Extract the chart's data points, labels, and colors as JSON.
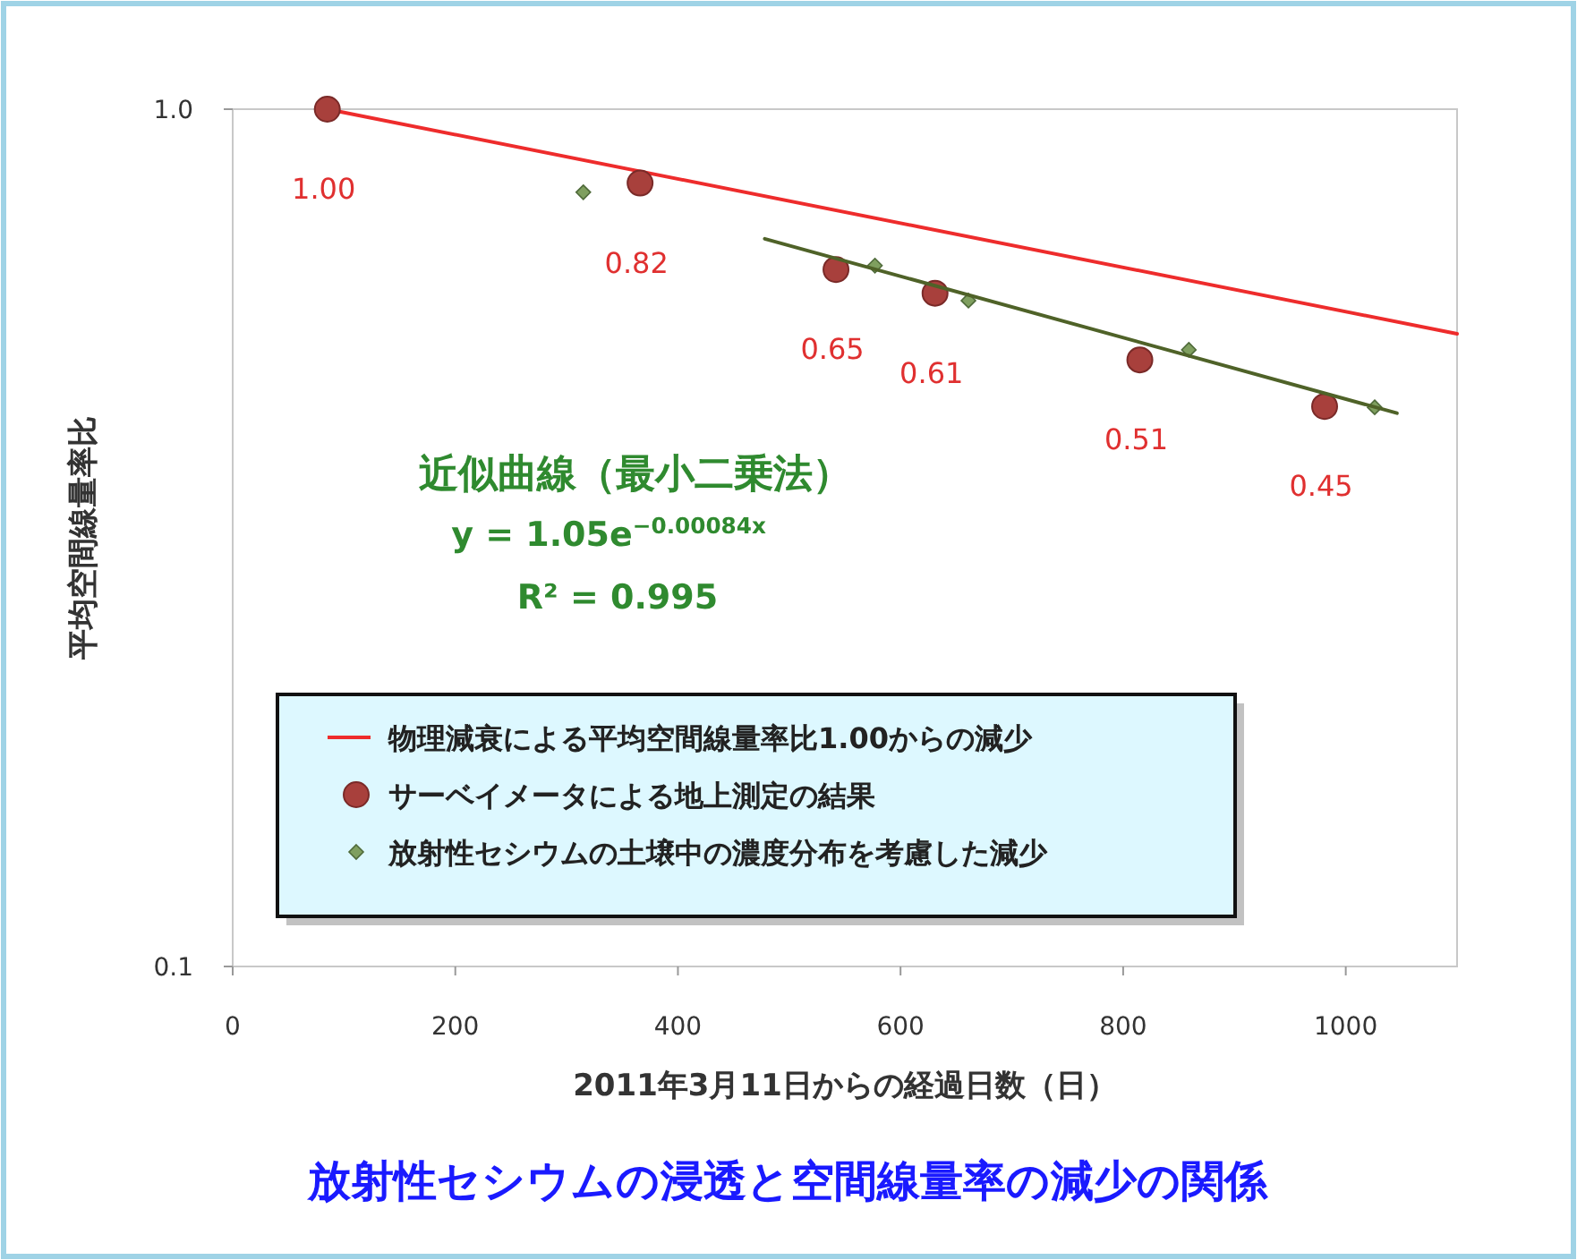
{
  "chart_data": {
    "type": "scatter",
    "title": "放射性セシウムの浸透と空間線量率の減少の関係",
    "xlabel": "2011年3月11日からの経過日数（日）",
    "ylabel": "平均空間線量率比",
    "log": "y",
    "xlim": [
      0,
      1100
    ],
    "ylim": [
      0.1,
      1
    ],
    "xticks": [
      0,
      200,
      400,
      600,
      800,
      1000
    ],
    "yticks": [
      {
        "value": 0.1,
        "label": "0.1"
      },
      {
        "value": 1,
        "label": "1.0"
      }
    ],
    "legend": "bottom left",
    "grid": false,
    "series": [
      {
        "name": "物理減衰による平均空間線量率比1.00からの減少",
        "type": "line",
        "marker": "none",
        "line_style": "solid",
        "color": "#ee2c2c",
        "x": [
          85,
          1100
        ],
        "values": [
          1.0,
          0.547
        ]
      },
      {
        "name": "サーベイメータによる地上測定の結果",
        "marker": "circle",
        "color": "#a8403c",
        "x": [
          85,
          366,
          542,
          631,
          815,
          981
        ],
        "values": [
          1.0,
          0.82,
          0.65,
          0.61,
          0.51,
          0.45
        ],
        "value_labels": [
          "1.00",
          "0.82",
          "0.65",
          "0.61",
          "0.51",
          "0.45"
        ]
      },
      {
        "name": "放射性セシウムの土壌中の濃度分布を考慮した減少",
        "marker": "diamond",
        "color": "#7f9f5f",
        "x": [
          315,
          577,
          661,
          859,
          1026
        ],
        "values": [
          0.8,
          0.657,
          0.598,
          0.524,
          0.449
        ]
      },
      {
        "type": "line",
        "marker": "none",
        "line_style": "solid",
        "color": "#4f6228",
        "x": [
          478,
          1046
        ],
        "values": [
          0.706,
          0.442
        ]
      }
    ],
    "annotations": [
      "近似曲線（最小二乗法）",
      "y = 1.05e$^{−0.00084x}$",
      "R² = 0.995"
    ]
  }
}
